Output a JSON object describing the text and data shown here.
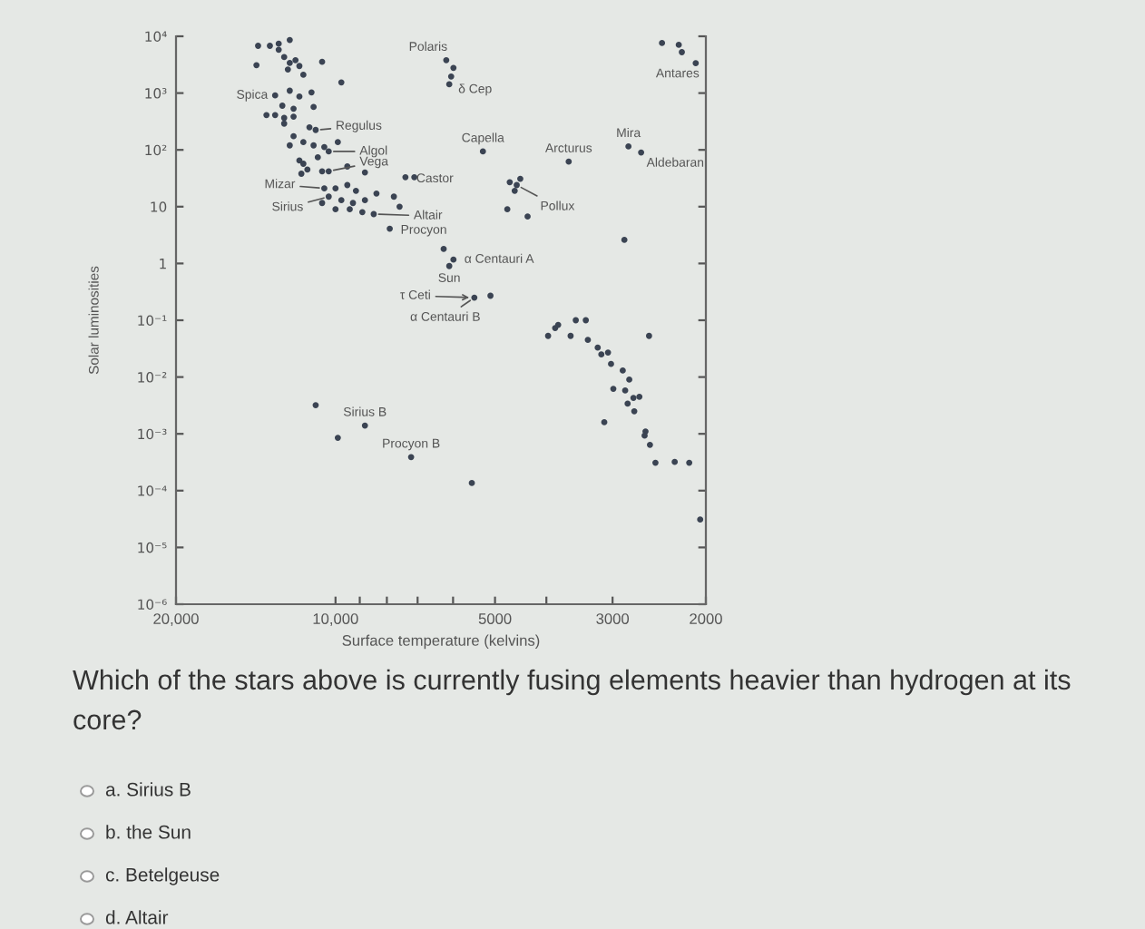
{
  "chart_data": {
    "type": "scatter",
    "xlabel": "Surface temperature (kelvins)",
    "ylabel": "Solar luminosities",
    "log": "xy",
    "marker": "circle",
    "color": "#3b4453",
    "xlim": [
      20000,
      2000
    ],
    "ylim": [
      1e-06,
      10000
    ],
    "xticks": [
      {
        "value": 20000,
        "label": "20,000"
      },
      {
        "value": 10000,
        "label": "10,000"
      },
      {
        "value": 9000,
        "label": null
      },
      {
        "value": 8000,
        "label": null
      },
      {
        "value": 7000,
        "label": null
      },
      {
        "value": 6000,
        "label": null
      },
      5000,
      {
        "value": 4000,
        "label": null
      },
      3000,
      2000
    ],
    "yticks": [
      {
        "value": 1e-06,
        "label": "10⁻⁶"
      },
      {
        "value": 1e-05,
        "label": "10⁻⁵"
      },
      {
        "value": 0.0001,
        "label": "10⁻⁴"
      },
      {
        "value": 0.001,
        "label": "10⁻³"
      },
      {
        "value": 0.01,
        "label": "10⁻²"
      },
      {
        "value": 0.1,
        "label": "10⁻¹"
      },
      1,
      10,
      {
        "value": 100,
        "label": "10²"
      },
      {
        "value": 1000,
        "label": "10³"
      },
      {
        "value": 10000,
        "label": "10⁴"
      }
    ],
    "x": [
      14000,
      13300,
      12800,
      12200,
      12800,
      12500,
      12200,
      11900,
      12300,
      11700,
      11500,
      10600,
      9750,
      14100,
      13000,
      12200,
      11700,
      11100,
      12600,
      12000,
      11000,
      13500,
      13000,
      12500,
      12000,
      12500,
      11200,
      10900,
      12000,
      12200,
      11500,
      11000,
      10500,
      10300,
      9900,
      11700,
      11500,
      11300,
      10800,
      11600,
      10600,
      10300,
      9500,
      8800,
      10500,
      10000,
      9500,
      9150,
      10300,
      9750,
      9270,
      8800,
      8370,
      10000,
      9400,
      8900,
      8470,
      7760,
      7570,
      7380,
      7100,
      7900,
      10600,
      6180,
      5990,
      6050,
      6100,
      5270,
      3630,
      2800,
      2650,
      2420,
      2250,
      2220,
      2090,
      4690,
      4550,
      4590,
      4480,
      4740,
      4340,
      2850,
      6250,
      5990,
      6100,
      5470,
      5100,
      3850,
      3970,
      3800,
      3520,
      3370,
      3600,
      3340,
      3200,
      3150,
      3060,
      3020,
      2870,
      2790,
      2990,
      2840,
      2740,
      2670,
      2810,
      2730,
      3110,
      2600,
      2610,
      2550,
      2490,
      2290,
      2150,
      2560,
      2050,
      5530,
      8800,
      7200,
      10900,
      9900
    ],
    "values": [
      6800,
      6800,
      7400,
      8600,
      5800,
      4300,
      3400,
      3800,
      2600,
      3000,
      2100,
      3550,
      1540,
      3100,
      910,
      1100,
      870,
      1030,
      600,
      530,
      570,
      410,
      410,
      365,
      385,
      290,
      250,
      224,
      174,
      120,
      137,
      120,
      112,
      94,
      137,
      65,
      57,
      45,
      74,
      38,
      42,
      42,
      51,
      40,
      21,
      21,
      24,
      19,
      15,
      13,
      11.6,
      13,
      17,
      9,
      9,
      8,
      7.4,
      15,
      10,
      33,
      33,
      4.1,
      11.6,
      3800,
      2780,
      1960,
      1430,
      94,
      62,
      115,
      90,
      7600,
      7070,
      5250,
      3360,
      27,
      24,
      19,
      31,
      9,
      6.7,
      2.6,
      1.8,
      1.17,
      0.9,
      0.25,
      0.27,
      0.073,
      0.053,
      0.083,
      0.1,
      0.1,
      0.053,
      0.045,
      0.033,
      0.025,
      0.027,
      0.017,
      0.013,
      0.009,
      0.0062,
      0.0058,
      0.0043,
      0.0045,
      0.0034,
      0.0025,
      0.0016,
      0.0011,
      0.00093,
      0.00064,
      0.00031,
      0.00032,
      0.00031,
      0.053,
      3.1e-05,
      0.000136,
      0.0014,
      0.00039,
      0.0032,
      0.00085
    ],
    "annotations": [
      {
        "text": "Polaris",
        "x": 6180,
        "y": 3800
      },
      {
        "text": "δ Cep",
        "x": 6100,
        "y": 1430
      },
      {
        "text": "Spica",
        "x": 13000,
        "y": 910
      },
      {
        "text": "Regulus",
        "x": 10900,
        "y": 224
      },
      {
        "text": "Algol",
        "x": 10300,
        "y": 94
      },
      {
        "text": "Vega",
        "x": 10300,
        "y": 42
      },
      {
        "text": "Castor",
        "x": 7380,
        "y": 33
      },
      {
        "text": "Mizar",
        "x": 10500,
        "y": 21
      },
      {
        "text": "Sirius",
        "x": 10300,
        "y": 15
      },
      {
        "text": "Altair",
        "x": 8470,
        "y": 7.4
      },
      {
        "text": "Procyon",
        "x": 7900,
        "y": 4.1
      },
      {
        "text": "Capella",
        "x": 5270,
        "y": 94
      },
      {
        "text": "Arcturus",
        "x": 3630,
        "y": 62
      },
      {
        "text": "Mira",
        "x": 2800,
        "y": 115
      },
      {
        "text": "Aldebaran",
        "x": 2650,
        "y": 90
      },
      {
        "text": "Antares",
        "x": 2090,
        "y": 3360
      },
      {
        "text": "Pollux",
        "x": 4550,
        "y": 24
      },
      {
        "text": "α Centauri A",
        "x": 5990,
        "y": 1.17
      },
      {
        "text": "Sun",
        "x": 6100,
        "y": 0.9
      },
      {
        "text": "τ Ceti",
        "x": 5470,
        "y": 0.25
      },
      {
        "text": "α Centauri B",
        "x": 5470,
        "y": 0.25
      },
      {
        "text": "Sirius B",
        "x": 8800,
        "y": 0.0014
      },
      {
        "text": "Procyon B",
        "x": 7200,
        "y": 0.00039
      },
      "Which of the stars above is currently fusing elements heavier than hydrogen at its core?",
      "a. Sirius B",
      "b. the Sun",
      "c. Betelgeuse",
      "d. Altair"
    ]
  }
}
